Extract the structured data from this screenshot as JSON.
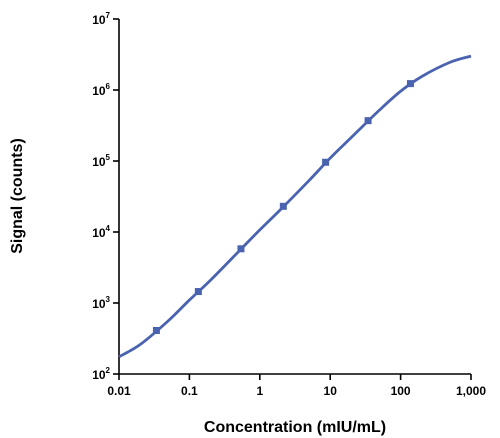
{
  "chart_data": {
    "type": "scatter",
    "title": "",
    "xlabel": "Concentration (mIU/mL)",
    "ylabel": "Signal (counts)",
    "x_scale": "log",
    "y_scale": "log",
    "xlim": [
      0.01,
      1000
    ],
    "ylim": [
      100,
      10000000
    ],
    "x_ticks": [
      {
        "value": 0.01,
        "label": "0.01"
      },
      {
        "value": 0.1,
        "label": "0.1"
      },
      {
        "value": 1,
        "label": "1"
      },
      {
        "value": 10,
        "label": "10"
      },
      {
        "value": 100,
        "label": "100"
      },
      {
        "value": 1000,
        "label": "1,000"
      }
    ],
    "y_ticks": [
      {
        "value": 100,
        "base": "10",
        "exp": "2"
      },
      {
        "value": 1000,
        "base": "10",
        "exp": "3"
      },
      {
        "value": 10000,
        "base": "10",
        "exp": "4"
      },
      {
        "value": 100000,
        "base": "10",
        "exp": "5"
      },
      {
        "value": 1000000,
        "base": "10",
        "exp": "6"
      },
      {
        "value": 10000000,
        "base": "10",
        "exp": "7"
      }
    ],
    "grid": false,
    "legend": "none",
    "color": "#4a63b0",
    "series": [
      {
        "points": [
          {
            "x": 0.034,
            "y": 410
          },
          {
            "x": 0.134,
            "y": 1450
          },
          {
            "x": 0.54,
            "y": 5800
          },
          {
            "x": 2.16,
            "y": 23000
          },
          {
            "x": 8.6,
            "y": 96000
          },
          {
            "x": 34.5,
            "y": 370000
          },
          {
            "x": 138,
            "y": 1230000
          }
        ],
        "fit_curve": {
          "x": [
            0.01,
            0.02,
            0.05,
            0.1,
            0.2,
            0.5,
            1,
            2,
            5,
            10,
            20,
            50,
            100,
            200,
            500,
            1000
          ],
          "y": [
            175,
            260,
            560,
            1100,
            2100,
            5300,
            10700,
            21000,
            53000,
            110000,
            215000,
            520000,
            960000,
            1550000,
            2450000,
            3000000
          ]
        }
      }
    ]
  }
}
